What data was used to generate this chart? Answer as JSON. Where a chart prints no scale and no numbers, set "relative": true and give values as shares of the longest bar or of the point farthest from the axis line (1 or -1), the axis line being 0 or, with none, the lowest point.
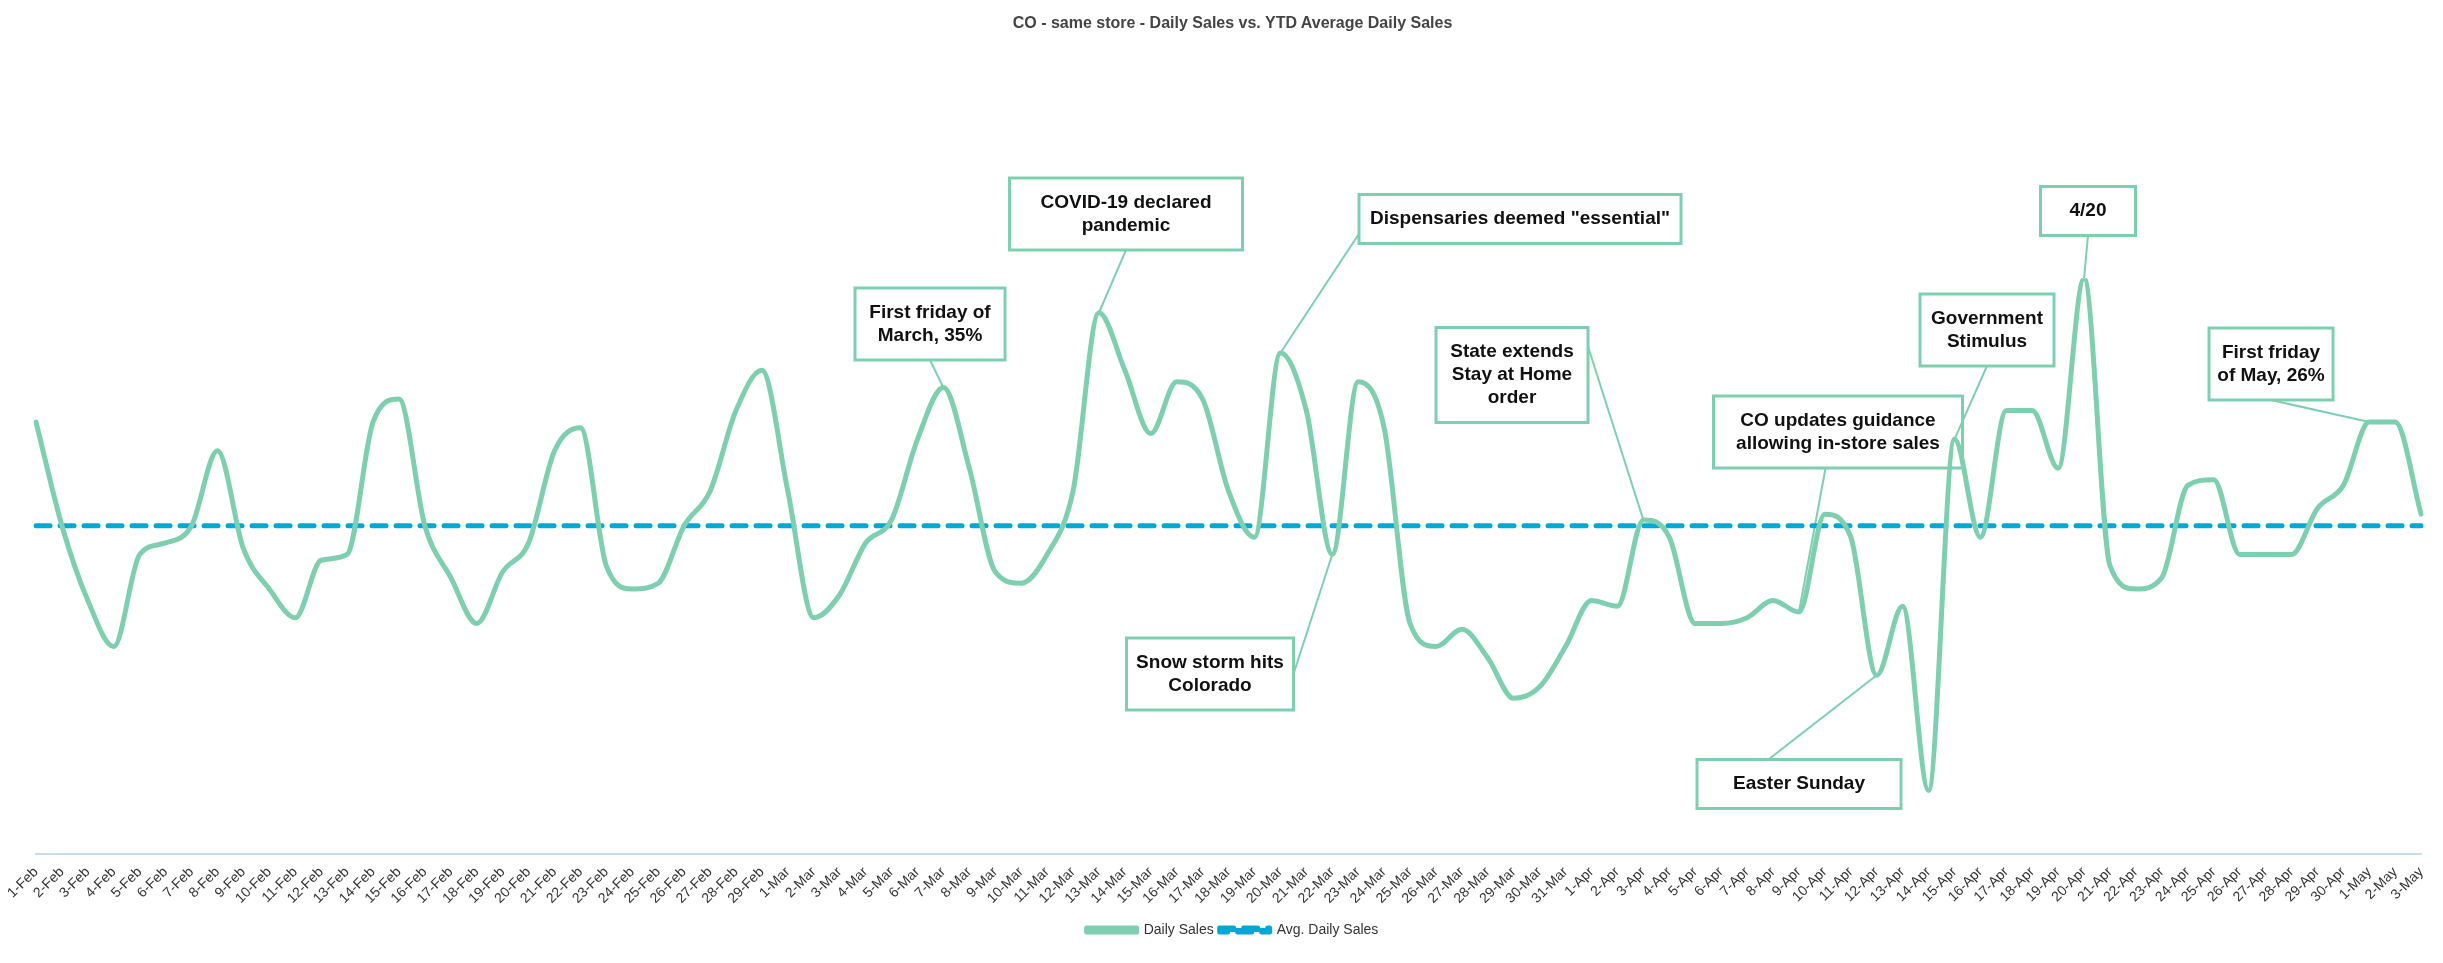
{
  "chart_data": {
    "type": "line",
    "title": "CO - same store - Daily Sales vs. YTD Average Daily Sales",
    "relative": true,
    "grid": false,
    "legend": "bottom",
    "marker": "none",
    "categories": [
      "1-Feb",
      "2-Feb",
      "3-Feb",
      "4-Feb",
      "5-Feb",
      "6-Feb",
      "7-Feb",
      "8-Feb",
      "9-Feb",
      "10-Feb",
      "11-Feb",
      "12-Feb",
      "13-Feb",
      "14-Feb",
      "15-Feb",
      "16-Feb",
      "17-Feb",
      "18-Feb",
      "19-Feb",
      "20-Feb",
      "21-Feb",
      "22-Feb",
      "23-Feb",
      "24-Feb",
      "25-Feb",
      "26-Feb",
      "27-Feb",
      "28-Feb",
      "29-Feb",
      "1-Mar",
      "2-Mar",
      "3-Mar",
      "4-Mar",
      "5-Mar",
      "6-Mar",
      "7-Mar",
      "8-Mar",
      "9-Mar",
      "10-Mar",
      "11-Mar",
      "12-Mar",
      "13-Mar",
      "14-Mar",
      "15-Mar",
      "16-Mar",
      "17-Mar",
      "18-Mar",
      "19-Mar",
      "20-Mar",
      "21-Mar",
      "22-Mar",
      "23-Mar",
      "24-Mar",
      "25-Mar",
      "26-Mar",
      "27-Mar",
      "28-Mar",
      "29-Mar",
      "30-Mar",
      "31-Mar",
      "1-Apr",
      "2-Apr",
      "3-Apr",
      "4-Apr",
      "5-Apr",
      "6-Apr",
      "7-Apr",
      "8-Apr",
      "9-Apr",
      "10-Apr",
      "11-Apr",
      "12-Apr",
      "13-Apr",
      "14-Apr",
      "15-Apr",
      "16-Apr",
      "17-Apr",
      "18-Apr",
      "19-Apr",
      "20-Apr",
      "21-Apr",
      "22-Apr",
      "23-Apr",
      "24-Apr",
      "25-Apr",
      "26-Apr",
      "27-Apr",
      "28-Apr",
      "29-Apr",
      "30-Apr",
      "1-May",
      "2-May",
      "3-May"
    ],
    "series": [
      {
        "name": "Daily Sales",
        "color": "#7dcfb0",
        "line_style": "solid",
        "values": [
          0.75,
          0.57,
          0.44,
          0.36,
          0.52,
          0.54,
          0.57,
          0.7,
          0.53,
          0.46,
          0.41,
          0.51,
          0.52,
          0.75,
          0.79,
          0.57,
          0.48,
          0.4,
          0.49,
          0.54,
          0.7,
          0.74,
          0.5,
          0.46,
          0.47,
          0.57,
          0.63,
          0.77,
          0.84,
          0.63,
          0.41,
          0.45,
          0.54,
          0.58,
          0.72,
          0.81,
          0.67,
          0.49,
          0.47,
          0.52,
          0.63,
          0.94,
          0.84,
          0.73,
          0.82,
          0.79,
          0.63,
          0.55,
          0.87,
          0.77,
          0.52,
          0.82,
          0.74,
          0.4,
          0.36,
          0.39,
          0.34,
          0.27,
          0.29,
          0.36,
          0.44,
          0.43,
          0.58,
          0.55,
          0.4,
          0.4,
          0.41,
          0.44,
          0.42,
          0.59,
          0.55,
          0.31,
          0.43,
          0.11,
          0.72,
          0.55,
          0.77,
          0.77,
          0.67,
          1.0,
          0.5,
          0.46,
          0.48,
          0.64,
          0.65,
          0.52,
          0.52,
          0.52,
          0.6,
          0.64,
          0.75,
          0.75,
          0.59
        ]
      },
      {
        "name": "Avg. Daily Sales",
        "color": "#00a9d4",
        "line_style": "dashed",
        "values": [
          0.57,
          0.57,
          0.57,
          0.57,
          0.57,
          0.57,
          0.57,
          0.57,
          0.57,
          0.57,
          0.57,
          0.57,
          0.57,
          0.57,
          0.57,
          0.57,
          0.57,
          0.57,
          0.57,
          0.57,
          0.57,
          0.57,
          0.57,
          0.57,
          0.57,
          0.57,
          0.57,
          0.57,
          0.57,
          0.57,
          0.57,
          0.57,
          0.57,
          0.57,
          0.57,
          0.57,
          0.57,
          0.57,
          0.57,
          0.57,
          0.57,
          0.57,
          0.57,
          0.57,
          0.57,
          0.57,
          0.57,
          0.57,
          0.57,
          0.57,
          0.57,
          0.57,
          0.57,
          0.57,
          0.57,
          0.57,
          0.57,
          0.57,
          0.57,
          0.57,
          0.57,
          0.57,
          0.57,
          0.57,
          0.57,
          0.57,
          0.57,
          0.57,
          0.57,
          0.57,
          0.57,
          0.57,
          0.57,
          0.57,
          0.57,
          0.57,
          0.57,
          0.57,
          0.57,
          0.57,
          0.57,
          0.57,
          0.57,
          0.57,
          0.57,
          0.57,
          0.57,
          0.57,
          0.57,
          0.57,
          0.57,
          0.57,
          0.57
        ]
      }
    ],
    "annotations": [
      {
        "text": "First friday of March, 35%",
        "x": "7-Mar",
        "y": 0.81
      },
      {
        "text": "COVID-19 declared pandemic",
        "x": "13-Mar",
        "y": 0.94
      },
      {
        "text": "Dispensaries deemed \"essential\"",
        "x": "20-Mar",
        "y": 0.87
      },
      {
        "text": "Snow storm hits Colorado",
        "x": "22-Mar",
        "y": 0.52
      },
      {
        "text": "State extends Stay at Home order",
        "x": "3-Apr",
        "y": 0.58
      },
      {
        "text": "CO updates guidance allowing in-store sales",
        "x": "9-Apr",
        "y": 0.42
      },
      {
        "text": "Easter Sunday",
        "x": "12-Apr",
        "y": 0.31
      },
      {
        "text": "Government Stimulus",
        "x": "15-Apr",
        "y": 0.72
      },
      {
        "text": "4/20",
        "x": "20-Apr",
        "y": 1.0
      },
      {
        "text": "First friday of May, 26%",
        "x": "1-May",
        "y": 0.75
      }
    ]
  }
}
